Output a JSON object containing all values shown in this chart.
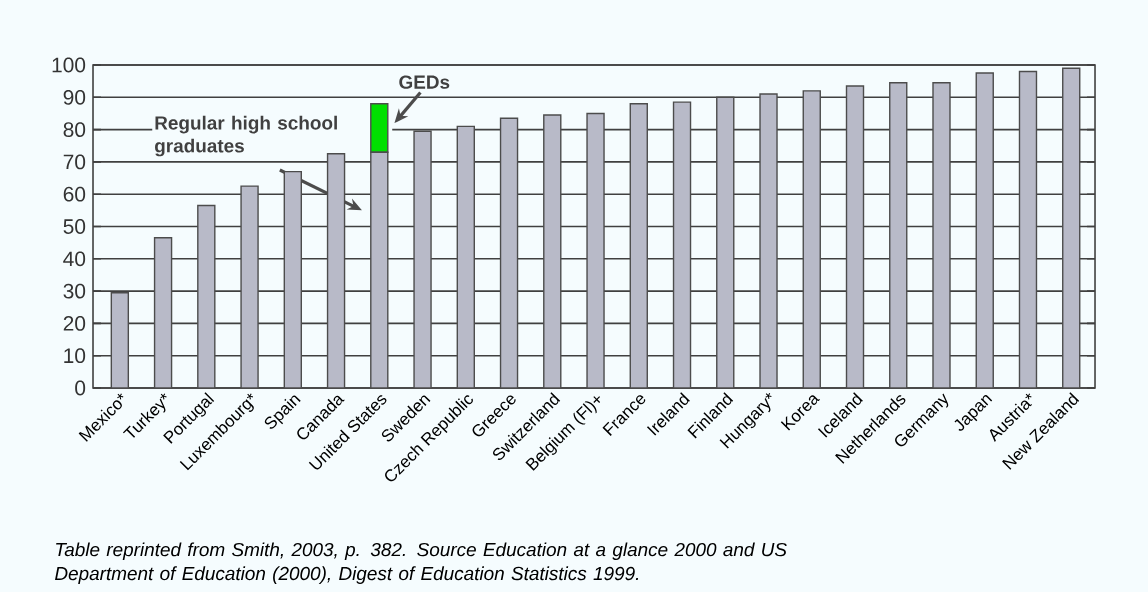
{
  "chart_data": {
    "type": "bar",
    "stacked": true,
    "grid": "y",
    "categories": [
      "Mexico*",
      "Turkey*",
      "Portugal",
      "Luxembourg*",
      "Spain",
      "Canada",
      "United States",
      "Sweden",
      "Czech Republic",
      "Greece",
      "Switzerland",
      "Belgium (Fl)+",
      "France",
      "Ireland",
      "Finland",
      "Hungary*",
      "Korea",
      "Iceland",
      "Netherlands",
      "Germany",
      "Japan",
      "Austria*",
      "New Zealand"
    ],
    "series": [
      {
        "color": "#b8bac8",
        "values": [
          29.5,
          46.5,
          56.5,
          62.5,
          67,
          72.5,
          73,
          79.5,
          81,
          83.5,
          84.5,
          85,
          88,
          88.5,
          90,
          91,
          92,
          93.5,
          94.5,
          94.5,
          97.5,
          98,
          99
        ]
      },
      {
        "color": "#00e000",
        "values": [
          null,
          null,
          null,
          null,
          null,
          null,
          15,
          null,
          null,
          null,
          null,
          null,
          null,
          null,
          null,
          null,
          null,
          null,
          null,
          null,
          null,
          null,
          null
        ]
      }
    ],
    "ylim": [
      0,
      100
    ],
    "yticks": [
      0,
      10,
      20,
      30,
      40,
      50,
      60,
      70,
      80,
      90,
      100
    ],
    "annotations": [
      "Regular high school graduates",
      "GEDs",
      "Table reprinted from Smith, 2003, p. 382.  Source Education at a glance 2000 and US Department of Education (2000), Digest of Education Statistics 1999."
    ]
  }
}
